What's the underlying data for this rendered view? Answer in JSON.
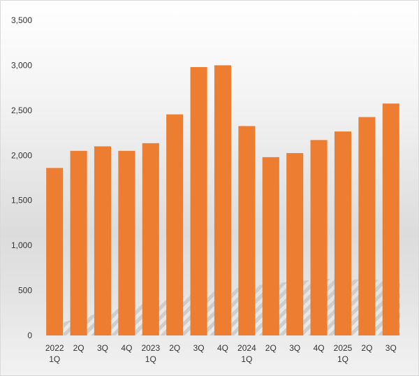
{
  "chart_data": {
    "type": "bar",
    "title": "",
    "xlabel": "",
    "ylabel": "",
    "categories": [
      [
        "2022",
        "1Q"
      ],
      [
        "2Q"
      ],
      [
        "3Q"
      ],
      [
        "4Q"
      ],
      [
        "2023",
        "1Q"
      ],
      [
        "2Q"
      ],
      [
        "3Q"
      ],
      [
        "4Q"
      ],
      [
        "2024",
        "1Q"
      ],
      [
        "2Q"
      ],
      [
        "3Q"
      ],
      [
        "4Q"
      ],
      [
        "2025",
        "1Q"
      ],
      [
        "2Q"
      ],
      [
        "3Q"
      ]
    ],
    "values": [
      1860,
      2050,
      2100,
      2050,
      2135,
      2455,
      2980,
      3000,
      2325,
      1980,
      2025,
      2170,
      2265,
      2425,
      2575
    ],
    "ylim": [
      0,
      3500
    ],
    "yticks": [
      0,
      500,
      1000,
      1500,
      2000,
      2500,
      3000,
      3500
    ],
    "ytick_labels": [
      "0",
      "500",
      "1,000",
      "1,500",
      "2,000",
      "2,500",
      "3,000",
      "3,500"
    ],
    "grid": false,
    "legend": "none",
    "bar_color": "#ed7d31"
  }
}
